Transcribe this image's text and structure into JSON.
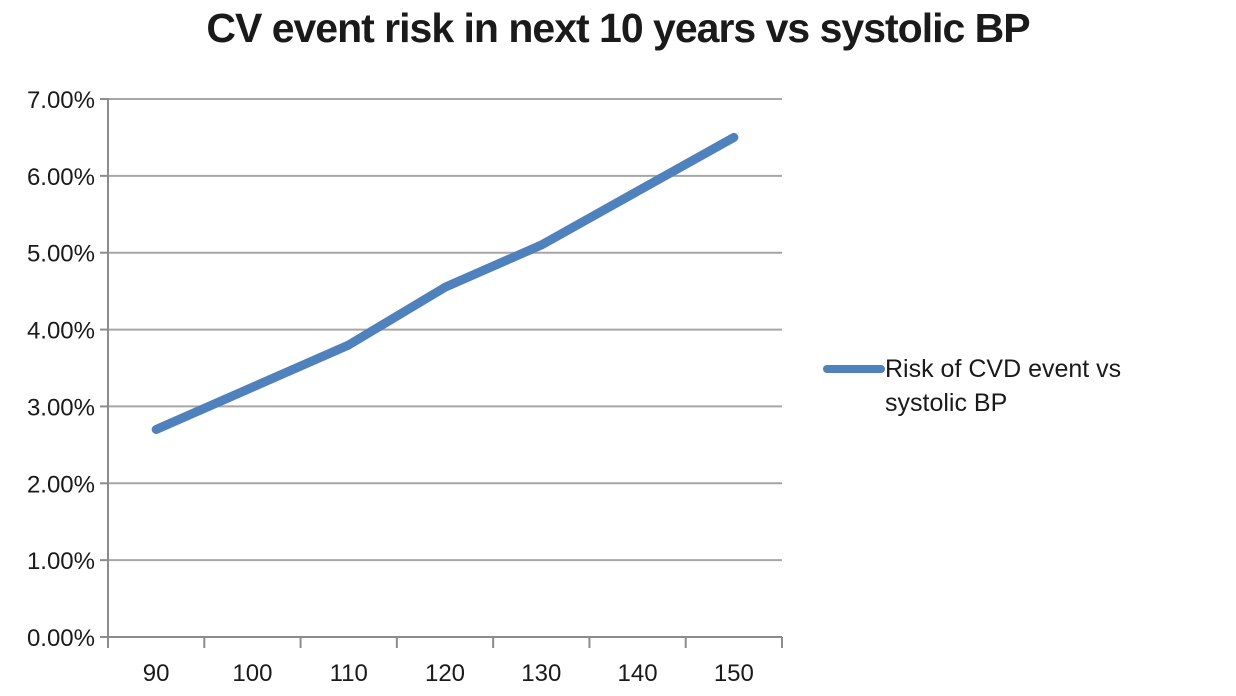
{
  "chart_data": {
    "type": "line",
    "title": "CV event risk in next 10 years vs systolic BP",
    "categories": [
      "90",
      "100",
      "110",
      "120",
      "130",
      "140",
      "150"
    ],
    "series": [
      {
        "name": "Risk of CVD event vs systolic BP",
        "values": [
          2.7,
          3.25,
          3.8,
          4.55,
          5.1,
          5.8,
          6.5
        ]
      }
    ],
    "xlabel": "",
    "ylabel": "",
    "ylim": [
      0,
      7
    ],
    "ytick_labels": [
      "0.00%",
      "1.00%",
      "2.00%",
      "3.00%",
      "4.00%",
      "5.00%",
      "6.00%",
      "7.00%"
    ],
    "grid": true,
    "legend_position": "right"
  },
  "colors": {
    "series": "#4F81BD",
    "gridline": "#A6A6A6",
    "axis": "#8C8C8C",
    "text": "#1A1A1A"
  }
}
